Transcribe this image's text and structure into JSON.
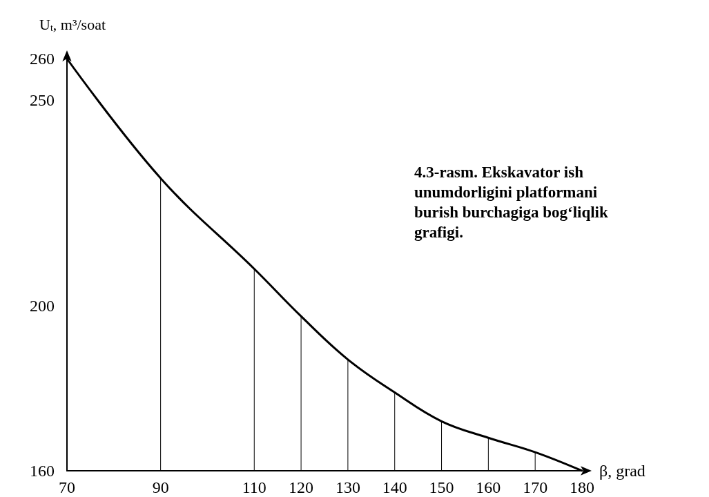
{
  "chart_data": {
    "type": "line",
    "xlabel": "β, grad",
    "ylabel": "U$_{t}$, m³/soat",
    "x": [
      70,
      90,
      110,
      120,
      130,
      140,
      150,
      160,
      170,
      180
    ],
    "series": [
      {
        "color": "#000000",
        "values": [
          260,
          231,
          209,
          197.5,
          187,
          179,
          172,
          168,
          164.5,
          160
        ]
      },
      {
        "type": "bar",
        "color": "#000000",
        "x": [
          90,
          110,
          120,
          130,
          140,
          150,
          160,
          170
        ],
        "values": [
          231,
          209,
          197.5,
          187,
          179,
          172,
          168,
          164.5
        ]
      }
    ],
    "xlim": [
      70,
      180
    ],
    "xticks": [
      70,
      90,
      110,
      120,
      130,
      140,
      150,
      160,
      170,
      180
    ],
    "ylim": [
      160,
      260
    ],
    "yticks": [
      160,
      200,
      250,
      260
    ],
    "marker": "none",
    "line_style": "solid",
    "annotations": [
      "4.3-rasm. Ekskavator ish unumdorligini platformani burish burchagiga bog‘liqlik grafigi."
    ]
  }
}
